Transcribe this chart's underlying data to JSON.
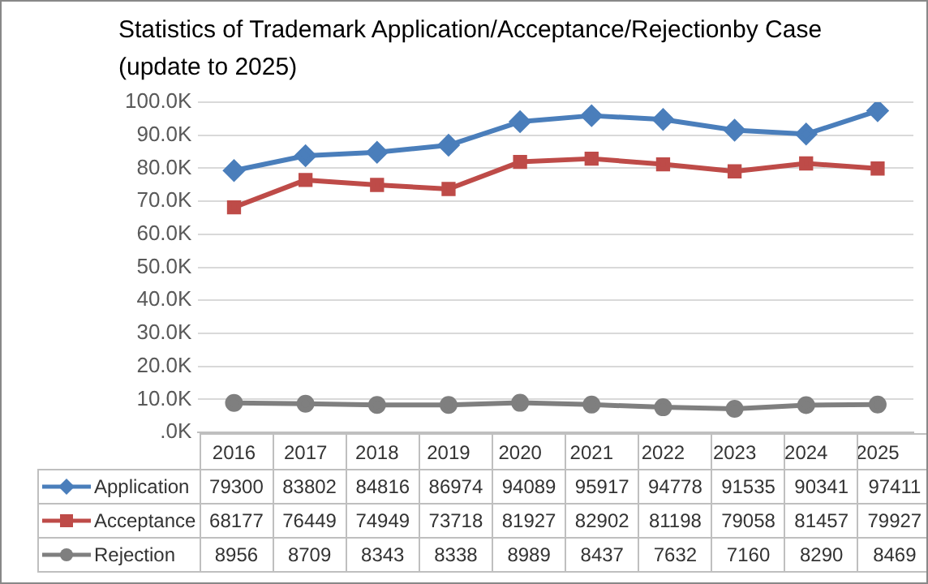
{
  "chart_data": {
    "type": "line",
    "title": "Statistics of Trademark Application/Acceptance/Rejectionby Case",
    "subtitle": "(update to 2025)",
    "categories": [
      "2016",
      "2017",
      "2018",
      "2019",
      "2020",
      "2021",
      "2022",
      "2023",
      "2024",
      "2025"
    ],
    "series": [
      {
        "name": "Application",
        "color": "#4a7ebb",
        "marker": "diamond",
        "values": [
          79300,
          83802,
          84816,
          86974,
          94089,
          95917,
          94778,
          91535,
          90341,
          97411
        ]
      },
      {
        "name": "Acceptance",
        "color": "#be4b48",
        "marker": "square",
        "values": [
          68177,
          76449,
          74949,
          73718,
          81927,
          82902,
          81198,
          79058,
          81457,
          79927
        ]
      },
      {
        "name": "Rejection",
        "color": "#7f7f7f",
        "marker": "circle",
        "values": [
          8956,
          8709,
          8343,
          8338,
          8989,
          8437,
          7632,
          7160,
          8290,
          8469
        ]
      }
    ],
    "ylim": [
      0,
      100000
    ],
    "yticks": [
      {
        "value": 0,
        "label": ".0K"
      },
      {
        "value": 10000,
        "label": "10.0K"
      },
      {
        "value": 20000,
        "label": "20.0K"
      },
      {
        "value": 30000,
        "label": "30.0K"
      },
      {
        "value": 40000,
        "label": "40.0K"
      },
      {
        "value": 50000,
        "label": "50.0K"
      },
      {
        "value": 60000,
        "label": "60.0K"
      },
      {
        "value": 70000,
        "label": "70.0K"
      },
      {
        "value": 80000,
        "label": "80.0K"
      },
      {
        "value": 90000,
        "label": "90.0K"
      },
      {
        "value": 100000,
        "label": "100.0K"
      }
    ],
    "grid": "y",
    "legend": "bottom",
    "data_labels": true,
    "line_style": "solid"
  }
}
